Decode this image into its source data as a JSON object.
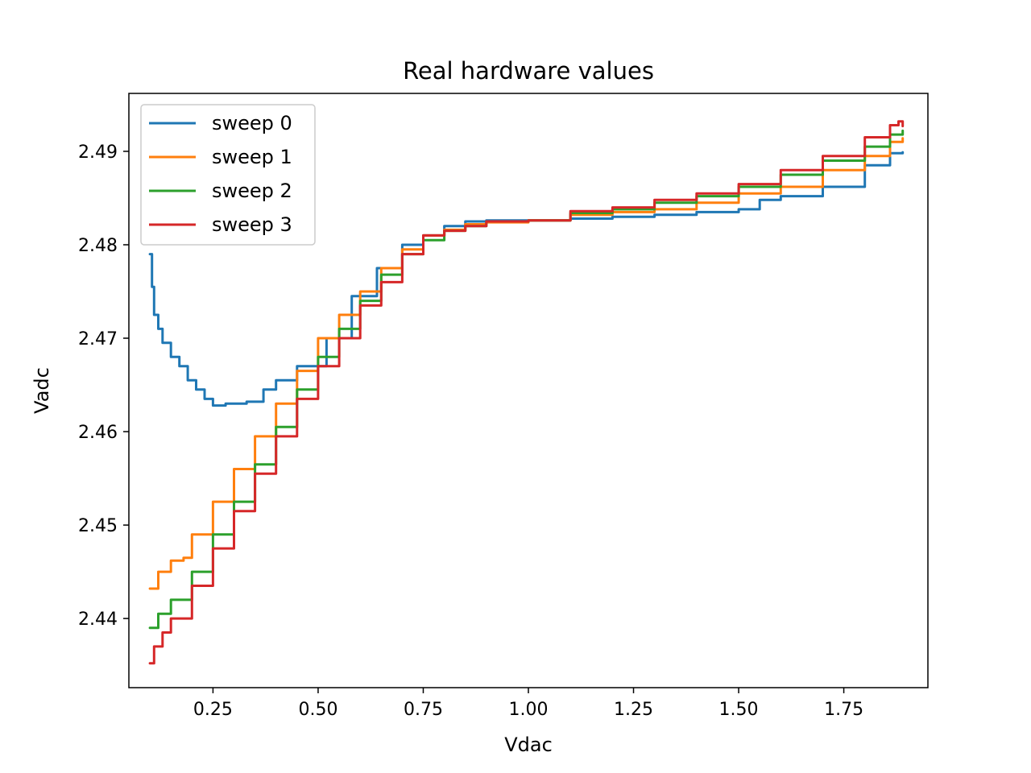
{
  "chart_data": {
    "type": "line",
    "title": "Real hardware values",
    "xlabel": "Vdac",
    "ylabel": "Vadc",
    "xlim": [
      0.05,
      1.95
    ],
    "ylim": [
      2.4326,
      2.4962
    ],
    "xticks": [
      0.25,
      0.5,
      0.75,
      1.0,
      1.25,
      1.5,
      1.75
    ],
    "xtick_labels": [
      "0.25",
      "0.50",
      "0.75",
      "1.00",
      "1.25",
      "1.50",
      "1.75"
    ],
    "yticks": [
      2.44,
      2.45,
      2.46,
      2.47,
      2.48,
      2.49
    ],
    "ytick_labels": [
      "2.44",
      "2.45",
      "2.46",
      "2.47",
      "2.48",
      "2.49"
    ],
    "grid": false,
    "legend_position": "upper-left",
    "series": [
      {
        "name": "sweep 0",
        "color": "#1f77b4",
        "points": [
          [
            0.1,
            2.479
          ],
          [
            0.105,
            2.4755
          ],
          [
            0.11,
            2.4725
          ],
          [
            0.12,
            2.471
          ],
          [
            0.13,
            2.4695
          ],
          [
            0.15,
            2.468
          ],
          [
            0.17,
            2.467
          ],
          [
            0.19,
            2.4655
          ],
          [
            0.21,
            2.4645
          ],
          [
            0.23,
            2.4635
          ],
          [
            0.25,
            2.4628
          ],
          [
            0.28,
            2.463
          ],
          [
            0.33,
            2.4632
          ],
          [
            0.37,
            2.4645
          ],
          [
            0.4,
            2.4655
          ],
          [
            0.45,
            2.467
          ],
          [
            0.52,
            2.47
          ],
          [
            0.58,
            2.4745
          ],
          [
            0.64,
            2.4775
          ],
          [
            0.7,
            2.48
          ],
          [
            0.75,
            2.481
          ],
          [
            0.8,
            2.482
          ],
          [
            0.85,
            2.4825
          ],
          [
            0.9,
            2.4826
          ],
          [
            1.0,
            2.4826
          ],
          [
            1.1,
            2.4828
          ],
          [
            1.2,
            2.483
          ],
          [
            1.3,
            2.4832
          ],
          [
            1.4,
            2.4835
          ],
          [
            1.5,
            2.4838
          ],
          [
            1.55,
            2.4848
          ],
          [
            1.6,
            2.4852
          ],
          [
            1.7,
            2.4862
          ],
          [
            1.8,
            2.4885
          ],
          [
            1.86,
            2.4898
          ],
          [
            1.89,
            2.4899
          ]
        ]
      },
      {
        "name": "sweep 1",
        "color": "#ff7f0e",
        "points": [
          [
            0.1,
            2.4432
          ],
          [
            0.12,
            2.445
          ],
          [
            0.15,
            2.4462
          ],
          [
            0.18,
            2.4465
          ],
          [
            0.2,
            2.449
          ],
          [
            0.25,
            2.4525
          ],
          [
            0.3,
            2.456
          ],
          [
            0.35,
            2.4595
          ],
          [
            0.4,
            2.463
          ],
          [
            0.45,
            2.4665
          ],
          [
            0.5,
            2.47
          ],
          [
            0.55,
            2.4725
          ],
          [
            0.6,
            2.475
          ],
          [
            0.65,
            2.4775
          ],
          [
            0.7,
            2.4795
          ],
          [
            0.75,
            2.481
          ],
          [
            0.8,
            2.4816
          ],
          [
            0.85,
            2.4822
          ],
          [
            0.9,
            2.4824
          ],
          [
            1.0,
            2.4826
          ],
          [
            1.1,
            2.4832
          ],
          [
            1.2,
            2.4835
          ],
          [
            1.3,
            2.4838
          ],
          [
            1.4,
            2.4845
          ],
          [
            1.5,
            2.4855
          ],
          [
            1.6,
            2.4862
          ],
          [
            1.7,
            2.488
          ],
          [
            1.8,
            2.4895
          ],
          [
            1.86,
            2.491
          ],
          [
            1.89,
            2.4914
          ]
        ]
      },
      {
        "name": "sweep 2",
        "color": "#2ca02c",
        "points": [
          [
            0.1,
            2.439
          ],
          [
            0.12,
            2.4405
          ],
          [
            0.15,
            2.442
          ],
          [
            0.2,
            2.445
          ],
          [
            0.25,
            2.449
          ],
          [
            0.3,
            2.4525
          ],
          [
            0.35,
            2.4565
          ],
          [
            0.4,
            2.4605
          ],
          [
            0.45,
            2.4645
          ],
          [
            0.5,
            2.468
          ],
          [
            0.55,
            2.471
          ],
          [
            0.6,
            2.474
          ],
          [
            0.65,
            2.4768
          ],
          [
            0.7,
            2.479
          ],
          [
            0.75,
            2.4805
          ],
          [
            0.8,
            2.4815
          ],
          [
            0.85,
            2.482
          ],
          [
            0.9,
            2.4825
          ],
          [
            1.0,
            2.4826
          ],
          [
            1.1,
            2.4834
          ],
          [
            1.2,
            2.4838
          ],
          [
            1.3,
            2.4845
          ],
          [
            1.4,
            2.4852
          ],
          [
            1.5,
            2.4862
          ],
          [
            1.6,
            2.4875
          ],
          [
            1.7,
            2.489
          ],
          [
            1.8,
            2.4905
          ],
          [
            1.86,
            2.4918
          ],
          [
            1.89,
            2.4922
          ]
        ]
      },
      {
        "name": "sweep 3",
        "color": "#d62728",
        "points": [
          [
            0.1,
            2.4352
          ],
          [
            0.11,
            2.437
          ],
          [
            0.13,
            2.4385
          ],
          [
            0.15,
            2.44
          ],
          [
            0.2,
            2.4435
          ],
          [
            0.25,
            2.4475
          ],
          [
            0.3,
            2.4515
          ],
          [
            0.35,
            2.4555
          ],
          [
            0.4,
            2.4595
          ],
          [
            0.45,
            2.4635
          ],
          [
            0.5,
            2.467
          ],
          [
            0.55,
            2.47
          ],
          [
            0.6,
            2.4735
          ],
          [
            0.65,
            2.476
          ],
          [
            0.7,
            2.479
          ],
          [
            0.75,
            2.481
          ],
          [
            0.8,
            2.4815
          ],
          [
            0.85,
            2.482
          ],
          [
            0.9,
            2.4825
          ],
          [
            1.0,
            2.4826
          ],
          [
            1.1,
            2.4836
          ],
          [
            1.2,
            2.484
          ],
          [
            1.3,
            2.4848
          ],
          [
            1.4,
            2.4855
          ],
          [
            1.5,
            2.4865
          ],
          [
            1.6,
            2.488
          ],
          [
            1.7,
            2.4895
          ],
          [
            1.8,
            2.4915
          ],
          [
            1.86,
            2.4928
          ],
          [
            1.88,
            2.4932
          ],
          [
            1.89,
            2.4927
          ]
        ]
      }
    ]
  }
}
